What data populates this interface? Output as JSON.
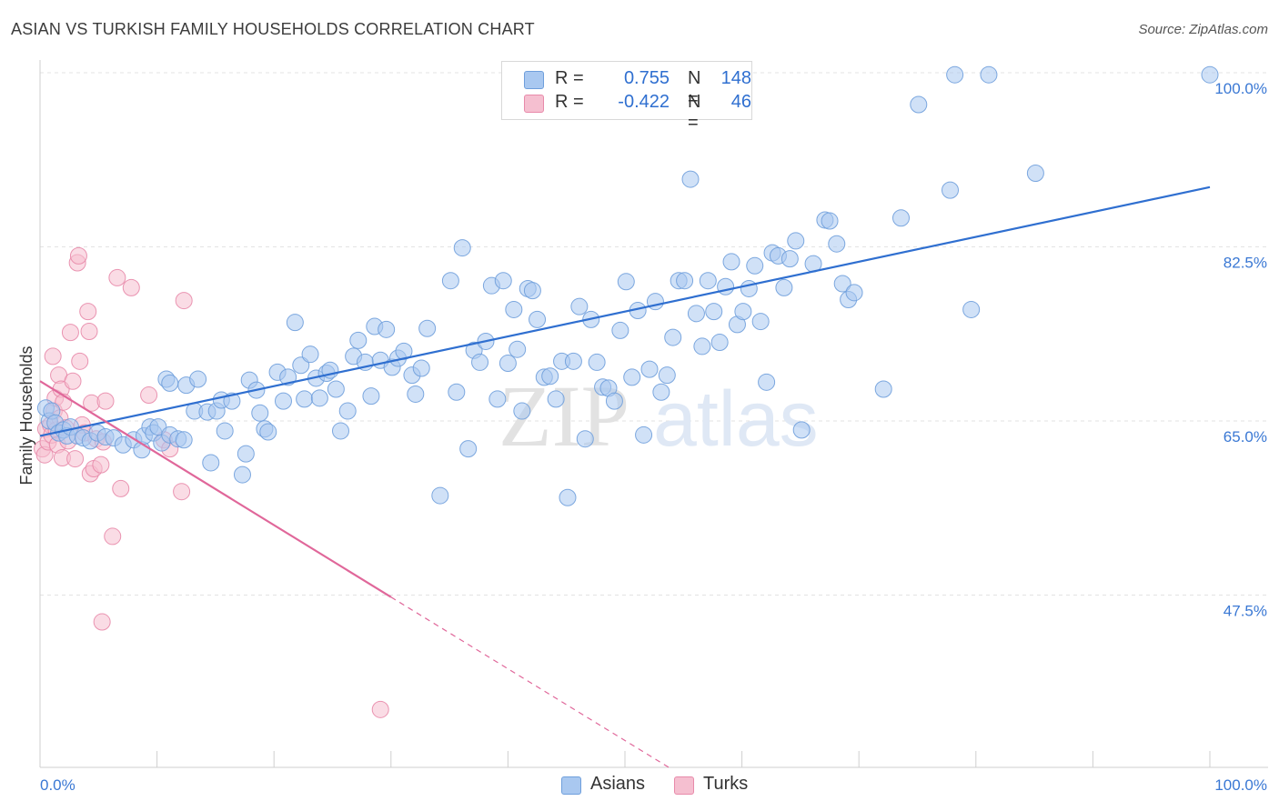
{
  "header": {
    "title": "ASIAN VS TURKISH FAMILY HOUSEHOLDS CORRELATION CHART",
    "source": "Source: ZipAtlas.com"
  },
  "legend": {
    "rows": [
      {
        "r_label": "R =",
        "r_value": "0.755",
        "n_label": "N =",
        "n_value": "148"
      },
      {
        "r_label": "R =",
        "r_value": "-0.422",
        "n_label": "N =",
        "n_value": "46"
      }
    ]
  },
  "watermark": {
    "zip": "ZIP",
    "atlas": "atlas"
  },
  "chart_data": {
    "type": "scatter",
    "ylabel": "Family Households",
    "xlim": [
      0,
      100
    ],
    "ylim": [
      30,
      101.5
    ],
    "x_tick_labels": [
      {
        "value": 0,
        "label": "0.0%"
      },
      {
        "value": 100,
        "label": "100.0%"
      }
    ],
    "y_tick_labels": [
      {
        "value": 100,
        "label": "100.0%"
      },
      {
        "value": 82.5,
        "label": "82.5%"
      },
      {
        "value": 65,
        "label": "65.0%"
      },
      {
        "value": 47.5,
        "label": "47.5%"
      }
    ],
    "grid": true,
    "legend_position": "top-center",
    "colors": {
      "Asians": {
        "fill": "#a9c8f0",
        "stroke": "#6f9fdc",
        "line": "#2f6fd0"
      },
      "Turks": {
        "fill": "#f5bfd0",
        "stroke": "#e88aaa",
        "line": "#e0679a"
      }
    },
    "series": [
      {
        "name": "Asians",
        "r": 0.755,
        "n": 148,
        "trendline": {
          "x": [
            0,
            100
          ],
          "y": [
            63.5,
            88.5
          ]
        },
        "points": [
          [
            0.5,
            66.3
          ],
          [
            0.8,
            65.0
          ],
          [
            1.0,
            66.0
          ],
          [
            1.3,
            64.8
          ],
          [
            1.6,
            63.8
          ],
          [
            2.0,
            64.1
          ],
          [
            2.3,
            63.5
          ],
          [
            2.6,
            64.4
          ],
          [
            3.2,
            63.5
          ],
          [
            3.7,
            63.3
          ],
          [
            4.3,
            63.0
          ],
          [
            4.9,
            63.8
          ],
          [
            5.6,
            63.4
          ],
          [
            6.3,
            63.3
          ],
          [
            7.1,
            62.6
          ],
          [
            8.0,
            63.1
          ],
          [
            8.7,
            62.1
          ],
          [
            8.9,
            63.5
          ],
          [
            9.4,
            64.4
          ],
          [
            9.7,
            63.8
          ],
          [
            10.1,
            64.4
          ],
          [
            10.4,
            62.8
          ],
          [
            11.1,
            63.6
          ],
          [
            11.8,
            63.2
          ],
          [
            12.3,
            63.1
          ],
          [
            10.8,
            69.2
          ],
          [
            11.1,
            68.8
          ],
          [
            12.5,
            68.6
          ],
          [
            13.2,
            66.0
          ],
          [
            13.5,
            69.2
          ],
          [
            14.3,
            65.9
          ],
          [
            14.6,
            60.8
          ],
          [
            15.1,
            66.0
          ],
          [
            15.5,
            67.1
          ],
          [
            15.8,
            64.0
          ],
          [
            16.4,
            67.0
          ],
          [
            17.3,
            59.6
          ],
          [
            17.6,
            61.7
          ],
          [
            17.9,
            69.1
          ],
          [
            18.5,
            68.1
          ],
          [
            18.8,
            65.8
          ],
          [
            19.2,
            64.2
          ],
          [
            19.5,
            63.9
          ],
          [
            20.3,
            69.9
          ],
          [
            20.8,
            67.0
          ],
          [
            21.2,
            69.4
          ],
          [
            21.8,
            74.9
          ],
          [
            22.3,
            70.6
          ],
          [
            22.6,
            67.2
          ],
          [
            23.1,
            71.7
          ],
          [
            23.6,
            69.3
          ],
          [
            23.9,
            67.3
          ],
          [
            24.5,
            69.8
          ],
          [
            24.8,
            70.1
          ],
          [
            25.3,
            68.2
          ],
          [
            25.7,
            64.0
          ],
          [
            26.3,
            66.0
          ],
          [
            26.8,
            71.5
          ],
          [
            27.2,
            73.1
          ],
          [
            27.8,
            70.9
          ],
          [
            28.3,
            67.5
          ],
          [
            28.6,
            74.5
          ],
          [
            29.1,
            71.1
          ],
          [
            29.6,
            74.2
          ],
          [
            30.1,
            70.4
          ],
          [
            30.6,
            71.3
          ],
          [
            31.1,
            72.0
          ],
          [
            31.8,
            69.6
          ],
          [
            32.1,
            67.7
          ],
          [
            32.6,
            70.3
          ],
          [
            33.1,
            74.3
          ],
          [
            34.2,
            57.5
          ],
          [
            35.1,
            79.1
          ],
          [
            35.6,
            67.9
          ],
          [
            36.1,
            82.4
          ],
          [
            36.6,
            62.2
          ],
          [
            37.1,
            72.1
          ],
          [
            37.6,
            70.9
          ],
          [
            38.1,
            73.0
          ],
          [
            38.6,
            78.6
          ],
          [
            39.1,
            67.2
          ],
          [
            39.6,
            79.1
          ],
          [
            40.0,
            70.8
          ],
          [
            40.5,
            76.2
          ],
          [
            40.8,
            72.2
          ],
          [
            41.2,
            66.0
          ],
          [
            41.7,
            78.3
          ],
          [
            42.1,
            78.1
          ],
          [
            42.5,
            75.2
          ],
          [
            43.1,
            69.4
          ],
          [
            43.6,
            69.5
          ],
          [
            44.1,
            67.2
          ],
          [
            44.6,
            71.0
          ],
          [
            45.1,
            57.3
          ],
          [
            45.6,
            71.0
          ],
          [
            46.1,
            76.5
          ],
          [
            46.6,
            63.2
          ],
          [
            47.1,
            75.2
          ],
          [
            47.6,
            70.9
          ],
          [
            48.1,
            68.4
          ],
          [
            48.6,
            68.3
          ],
          [
            49.1,
            67.0
          ],
          [
            49.6,
            74.1
          ],
          [
            50.1,
            79.0
          ],
          [
            50.6,
            69.4
          ],
          [
            51.1,
            76.1
          ],
          [
            51.6,
            63.6
          ],
          [
            52.1,
            70.2
          ],
          [
            52.6,
            77.0
          ],
          [
            53.1,
            67.9
          ],
          [
            53.6,
            69.6
          ],
          [
            54.1,
            73.4
          ],
          [
            54.6,
            79.1
          ],
          [
            55.1,
            79.1
          ],
          [
            55.6,
            89.3
          ],
          [
            56.1,
            75.8
          ],
          [
            56.6,
            72.5
          ],
          [
            57.1,
            79.1
          ],
          [
            57.6,
            76.0
          ],
          [
            58.1,
            72.9
          ],
          [
            58.6,
            78.5
          ],
          [
            59.1,
            81.0
          ],
          [
            59.6,
            74.7
          ],
          [
            60.1,
            76.0
          ],
          [
            60.6,
            78.3
          ],
          [
            61.1,
            80.6
          ],
          [
            61.6,
            75.0
          ],
          [
            62.1,
            68.9
          ],
          [
            62.6,
            81.9
          ],
          [
            63.1,
            81.6
          ],
          [
            63.6,
            78.4
          ],
          [
            64.1,
            81.3
          ],
          [
            64.6,
            83.1
          ],
          [
            65.1,
            64.1
          ],
          [
            66.1,
            80.8
          ],
          [
            67.1,
            85.2
          ],
          [
            67.5,
            85.1
          ],
          [
            68.1,
            82.8
          ],
          [
            68.6,
            78.8
          ],
          [
            69.1,
            77.2
          ],
          [
            69.6,
            77.9
          ],
          [
            72.1,
            68.2
          ],
          [
            73.6,
            85.4
          ],
          [
            75.1,
            96.8
          ],
          [
            77.8,
            88.2
          ],
          [
            78.2,
            99.8
          ],
          [
            79.6,
            76.2
          ],
          [
            81.1,
            99.8
          ],
          [
            85.1,
            89.9
          ],
          [
            100.0,
            99.8
          ]
        ]
      },
      {
        "name": "Turks",
        "r": -0.422,
        "n": 46,
        "trendline": {
          "x": [
            0,
            30
          ],
          "y": [
            69.0,
            47.3
          ]
        },
        "trendline_dashed": {
          "x": [
            30,
            54
          ],
          "y": [
            47.3,
            30.0
          ]
        },
        "points": [
          [
            0.2,
            62.2
          ],
          [
            0.4,
            61.6
          ],
          [
            0.5,
            64.2
          ],
          [
            0.7,
            62.9
          ],
          [
            0.9,
            64.6
          ],
          [
            1.0,
            63.6
          ],
          [
            1.1,
            71.5
          ],
          [
            1.2,
            66.0
          ],
          [
            1.3,
            67.3
          ],
          [
            1.4,
            64.1
          ],
          [
            1.5,
            62.6
          ],
          [
            1.6,
            69.6
          ],
          [
            1.7,
            65.3
          ],
          [
            1.8,
            68.2
          ],
          [
            1.9,
            61.3
          ],
          [
            2.0,
            66.9
          ],
          [
            2.2,
            64.3
          ],
          [
            2.4,
            63.0
          ],
          [
            2.6,
            73.9
          ],
          [
            2.8,
            69.0
          ],
          [
            3.0,
            61.2
          ],
          [
            3.2,
            80.9
          ],
          [
            3.3,
            81.6
          ],
          [
            3.4,
            71.0
          ],
          [
            3.6,
            64.6
          ],
          [
            3.8,
            63.8
          ],
          [
            4.1,
            76.0
          ],
          [
            4.2,
            74.0
          ],
          [
            4.3,
            59.7
          ],
          [
            4.4,
            66.8
          ],
          [
            4.6,
            60.2
          ],
          [
            4.8,
            63.2
          ],
          [
            5.2,
            60.6
          ],
          [
            5.4,
            62.9
          ],
          [
            5.6,
            67.0
          ],
          [
            6.2,
            53.4
          ],
          [
            6.6,
            79.4
          ],
          [
            6.9,
            58.2
          ],
          [
            7.8,
            78.4
          ],
          [
            9.3,
            67.6
          ],
          [
            10.6,
            63.1
          ],
          [
            11.1,
            62.2
          ],
          [
            12.1,
            57.9
          ],
          [
            12.3,
            77.1
          ],
          [
            5.3,
            44.8
          ],
          [
            29.1,
            36.0
          ]
        ]
      }
    ]
  }
}
